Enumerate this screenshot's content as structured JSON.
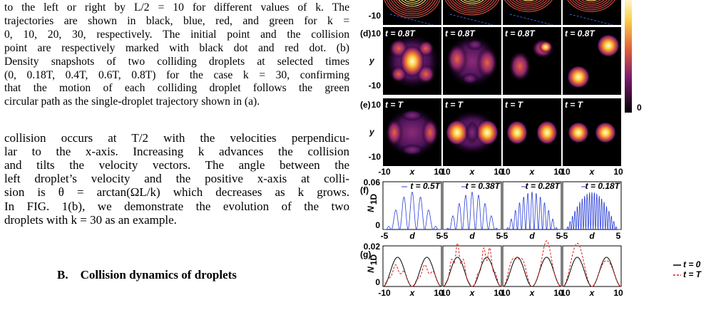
{
  "caption": {
    "lines": [
      "to the left or right by L/2 = 10 for different values of k. The",
      "trajectories are shown in black, blue, red, and green for k =",
      "0, 10, 20, 30, respectively. The initial point and the collision",
      "point are respectively marked with black dot and red dot. (b)",
      "Density snapshots of two colliding droplets at selected times",
      "(0, 0.18T, 0.4T, 0.6T, 0.8T) for the case k = 30, confirming",
      "that the motion of each colliding droplet follows the green",
      "circular path as the single-droplet trajectory shown in (a)."
    ]
  },
  "body": {
    "lines": [
      "collision occurs at T/2 with the velocities perpendicu-",
      "lar to the x-axis. Increasing k advances the collision",
      "and tilts the velocity vectors. The angle between the",
      "left droplet’s velocity and the positive x-axis at colli-",
      "sion is θ = arctan(ΩL/k) which decreases as k grows.",
      "In FIG. 1(b), we demonstrate the evolution of the two",
      "droplets with k = 30 as an example."
    ]
  },
  "section_heading": "B.    Collision dynamics of droplets",
  "figure": {
    "colorbar_label": "0",
    "density": {
      "y_label": "y",
      "x_label": "x",
      "tick_top": "10",
      "tick_bottom": "-10",
      "row_labels": [
        "(d)",
        "(e)"
      ],
      "row_times": [
        [
          "t = 0.8T",
          "t = 0.8T",
          "t = 0.8T",
          "t = 0.8T"
        ],
        [
          "t = T",
          "t = T",
          "t = T",
          "t = T"
        ]
      ]
    },
    "panel_f": {
      "label": "(f)",
      "y_label": "N",
      "y_label_sub": "1D",
      "yticks": [
        "0.06",
        "0"
      ],
      "x_label": "d",
      "xticks": [
        "-5",
        "5"
      ],
      "legend": [
        "t = 0.5T",
        "t = 0.38T",
        "t = 0.28T",
        "t = 0.18T"
      ]
    },
    "panel_g": {
      "label": "(g)",
      "y_label": "N",
      "y_label_sub": "1D",
      "yticks": [
        "0.02",
        "0"
      ],
      "x_label": "x",
      "xticks": [
        "-10",
        "10"
      ],
      "legend": [
        "t = 0",
        "t = T"
      ]
    }
  }
}
